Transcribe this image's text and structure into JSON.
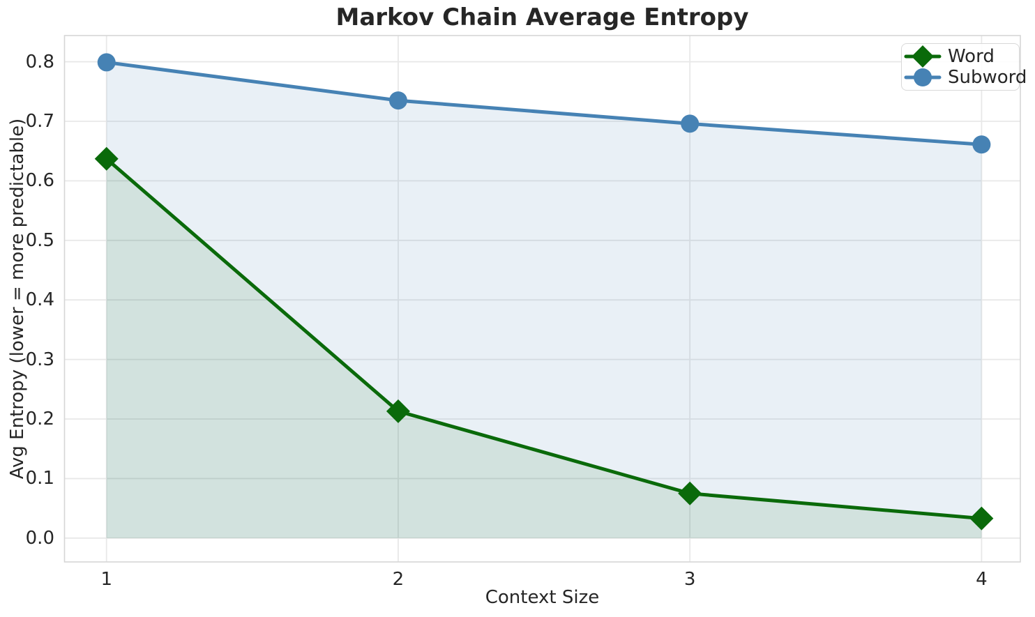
{
  "chart_data": {
    "type": "line",
    "title": "Markov Chain Average Entropy",
    "xlabel": "Context Size",
    "ylabel": "Avg Entropy (lower = more predictable)",
    "x": [
      1,
      2,
      3,
      4
    ],
    "series": [
      {
        "name": "Word",
        "color": "#0a6a0a",
        "marker": "diamond",
        "marker_size": 17,
        "line_width": 5,
        "fill_to_zero": true,
        "fill_opacity": 0.1,
        "values": [
          0.637,
          0.213,
          0.075,
          0.033
        ]
      },
      {
        "name": "Subword",
        "color": "#4682b4",
        "marker": "circle",
        "marker_size": 13,
        "line_width": 5,
        "fill_to_zero": true,
        "fill_opacity": 0.12,
        "values": [
          0.799,
          0.735,
          0.696,
          0.661
        ]
      }
    ],
    "xticks": {
      "values": [
        1,
        2,
        3,
        4
      ],
      "labels": [
        "1",
        "2",
        "3",
        "4"
      ]
    },
    "yticks": {
      "values": [
        0.0,
        0.1,
        0.2,
        0.3,
        0.4,
        0.5,
        0.6,
        0.7,
        0.8
      ],
      "labels": [
        "0.0",
        "0.1",
        "0.2",
        "0.3",
        "0.4",
        "0.5",
        "0.6",
        "0.7",
        "0.8"
      ]
    },
    "xlim": [
      0.856,
      4.133
    ],
    "ylim": [
      -0.04,
      0.844
    ],
    "grid": true,
    "legend_position": "upper right",
    "colors": {
      "background": "#ffffff",
      "grid": "#e8e8e8",
      "spine": "#d6d6d6",
      "text": "#262626"
    }
  }
}
